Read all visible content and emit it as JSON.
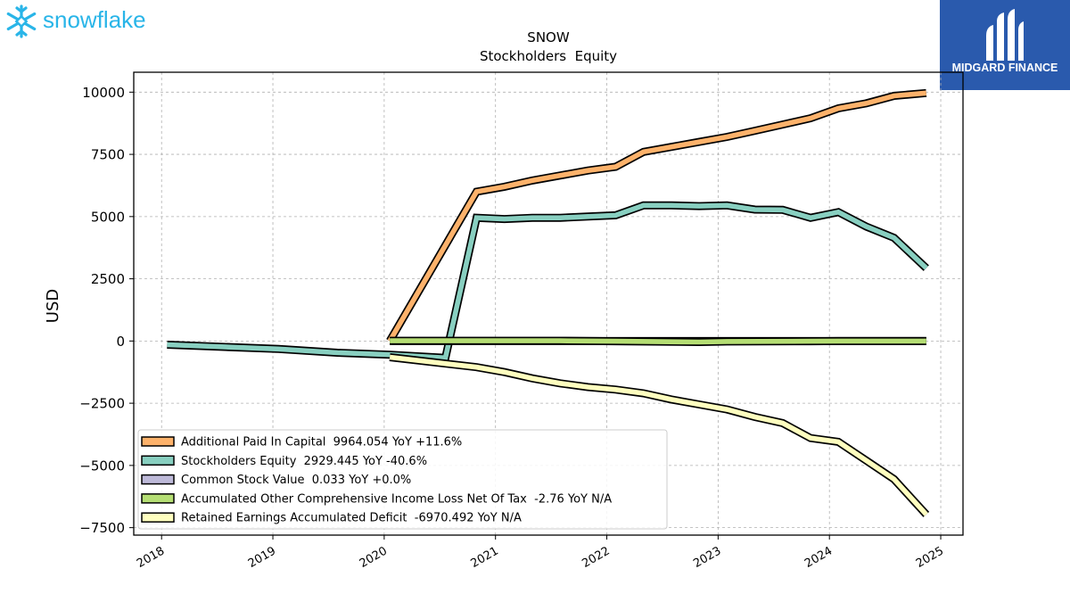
{
  "header": {
    "brand_left": "snowflake",
    "brand_right": "MIDGARD FINANCE"
  },
  "colors": {
    "snowflake_blue": "#29b5e8",
    "midgard_blue": "#2a5aad",
    "apic": "#fdb26b",
    "equity": "#88cfc0",
    "common": "#bebad9",
    "aoci": "#b5de74",
    "retained": "#ffffbf"
  },
  "chart_data": {
    "type": "line",
    "title": "SNOW",
    "subtitle": "Stockholders  Equity",
    "ylabel": "USD",
    "xlabel": "",
    "ylim": [
      -7800,
      10800
    ],
    "xlim": [
      2017.75,
      2025.2
    ],
    "yticks": [
      10000,
      7500,
      5000,
      2500,
      0,
      -2500,
      -5000,
      -7500
    ],
    "ytick_labels": [
      "10000",
      "7500",
      "5000",
      "2500",
      "0",
      "−2500",
      "−5000",
      "−7500"
    ],
    "xticks": [
      2018,
      2019,
      2020,
      2021,
      2022,
      2023,
      2024,
      2025
    ],
    "xtick_labels": [
      "2018",
      "2019",
      "2020",
      "2021",
      "2022",
      "2023",
      "2024",
      "2025"
    ],
    "grid": true,
    "legend_position": "lower-left",
    "series": [
      {
        "name": "Additional Paid In Capital",
        "legend": "Additional Paid In Capital  9964.054 YoY +11.6%",
        "color": "#fdb26b",
        "points": [
          [
            2020.05,
            0
          ],
          [
            2020.83,
            6000
          ],
          [
            2021.08,
            6200
          ],
          [
            2021.33,
            6450
          ],
          [
            2021.58,
            6650
          ],
          [
            2021.83,
            6850
          ],
          [
            2022.08,
            7000
          ],
          [
            2022.33,
            7600
          ],
          [
            2022.58,
            7800
          ],
          [
            2022.83,
            8000
          ],
          [
            2023.08,
            8200
          ],
          [
            2023.33,
            8450
          ],
          [
            2023.58,
            8700
          ],
          [
            2023.83,
            8950
          ],
          [
            2024.08,
            9350
          ],
          [
            2024.33,
            9550
          ],
          [
            2024.58,
            9850
          ],
          [
            2024.87,
            9964.054
          ]
        ]
      },
      {
        "name": "Stockholders Equity",
        "legend": "Stockholders Equity  2929.445 YoY -40.6%",
        "color": "#88cfc0",
        "points": [
          [
            2018.05,
            -150
          ],
          [
            2019.05,
            -320
          ],
          [
            2019.58,
            -470
          ],
          [
            2020.05,
            -550
          ],
          [
            2020.55,
            -680
          ],
          [
            2020.83,
            4950
          ],
          [
            2021.08,
            4900
          ],
          [
            2021.33,
            4950
          ],
          [
            2021.58,
            4950
          ],
          [
            2021.83,
            5000
          ],
          [
            2022.08,
            5050
          ],
          [
            2022.33,
            5450
          ],
          [
            2022.58,
            5450
          ],
          [
            2022.83,
            5420
          ],
          [
            2023.08,
            5450
          ],
          [
            2023.33,
            5280
          ],
          [
            2023.58,
            5270
          ],
          [
            2023.83,
            4950
          ],
          [
            2024.08,
            5180
          ],
          [
            2024.33,
            4600
          ],
          [
            2024.58,
            4150
          ],
          [
            2024.87,
            2929.445
          ]
        ]
      },
      {
        "name": "Common Stock Value",
        "legend": "Common Stock Value  0.033 YoY +0.0%",
        "color": "#bebad9",
        "points": [
          [
            2020.05,
            0.03
          ],
          [
            2024.87,
            0.033
          ]
        ]
      },
      {
        "name": "Accumulated Other Comprehensive Income Loss Net Of Tax",
        "legend": "Accumulated Other Comprehensive Income Loss Net Of Tax  -2.76 YoY N/A",
        "color": "#b5de74",
        "points": [
          [
            2020.05,
            10
          ],
          [
            2021.58,
            10
          ],
          [
            2022.08,
            -10
          ],
          [
            2022.83,
            -40
          ],
          [
            2023.08,
            -20
          ],
          [
            2023.83,
            -10
          ],
          [
            2024.08,
            0
          ],
          [
            2024.87,
            -2.76
          ]
        ]
      },
      {
        "name": "Retained Earnings Accumulated Deficit",
        "legend": "Retained Earnings Accumulated Deficit  -6970.492 YoY N/A",
        "color": "#ffffbf",
        "points": [
          [
            2020.05,
            -650
          ],
          [
            2020.83,
            -1050
          ],
          [
            2021.08,
            -1250
          ],
          [
            2021.33,
            -1500
          ],
          [
            2021.58,
            -1700
          ],
          [
            2021.83,
            -1850
          ],
          [
            2022.08,
            -1950
          ],
          [
            2022.33,
            -2100
          ],
          [
            2022.58,
            -2350
          ],
          [
            2022.83,
            -2550
          ],
          [
            2023.08,
            -2750
          ],
          [
            2023.33,
            -3050
          ],
          [
            2023.58,
            -3300
          ],
          [
            2023.83,
            -3900
          ],
          [
            2024.08,
            -4050
          ],
          [
            2024.33,
            -4800
          ],
          [
            2024.58,
            -5550
          ],
          [
            2024.87,
            -6970.492
          ]
        ]
      }
    ]
  }
}
